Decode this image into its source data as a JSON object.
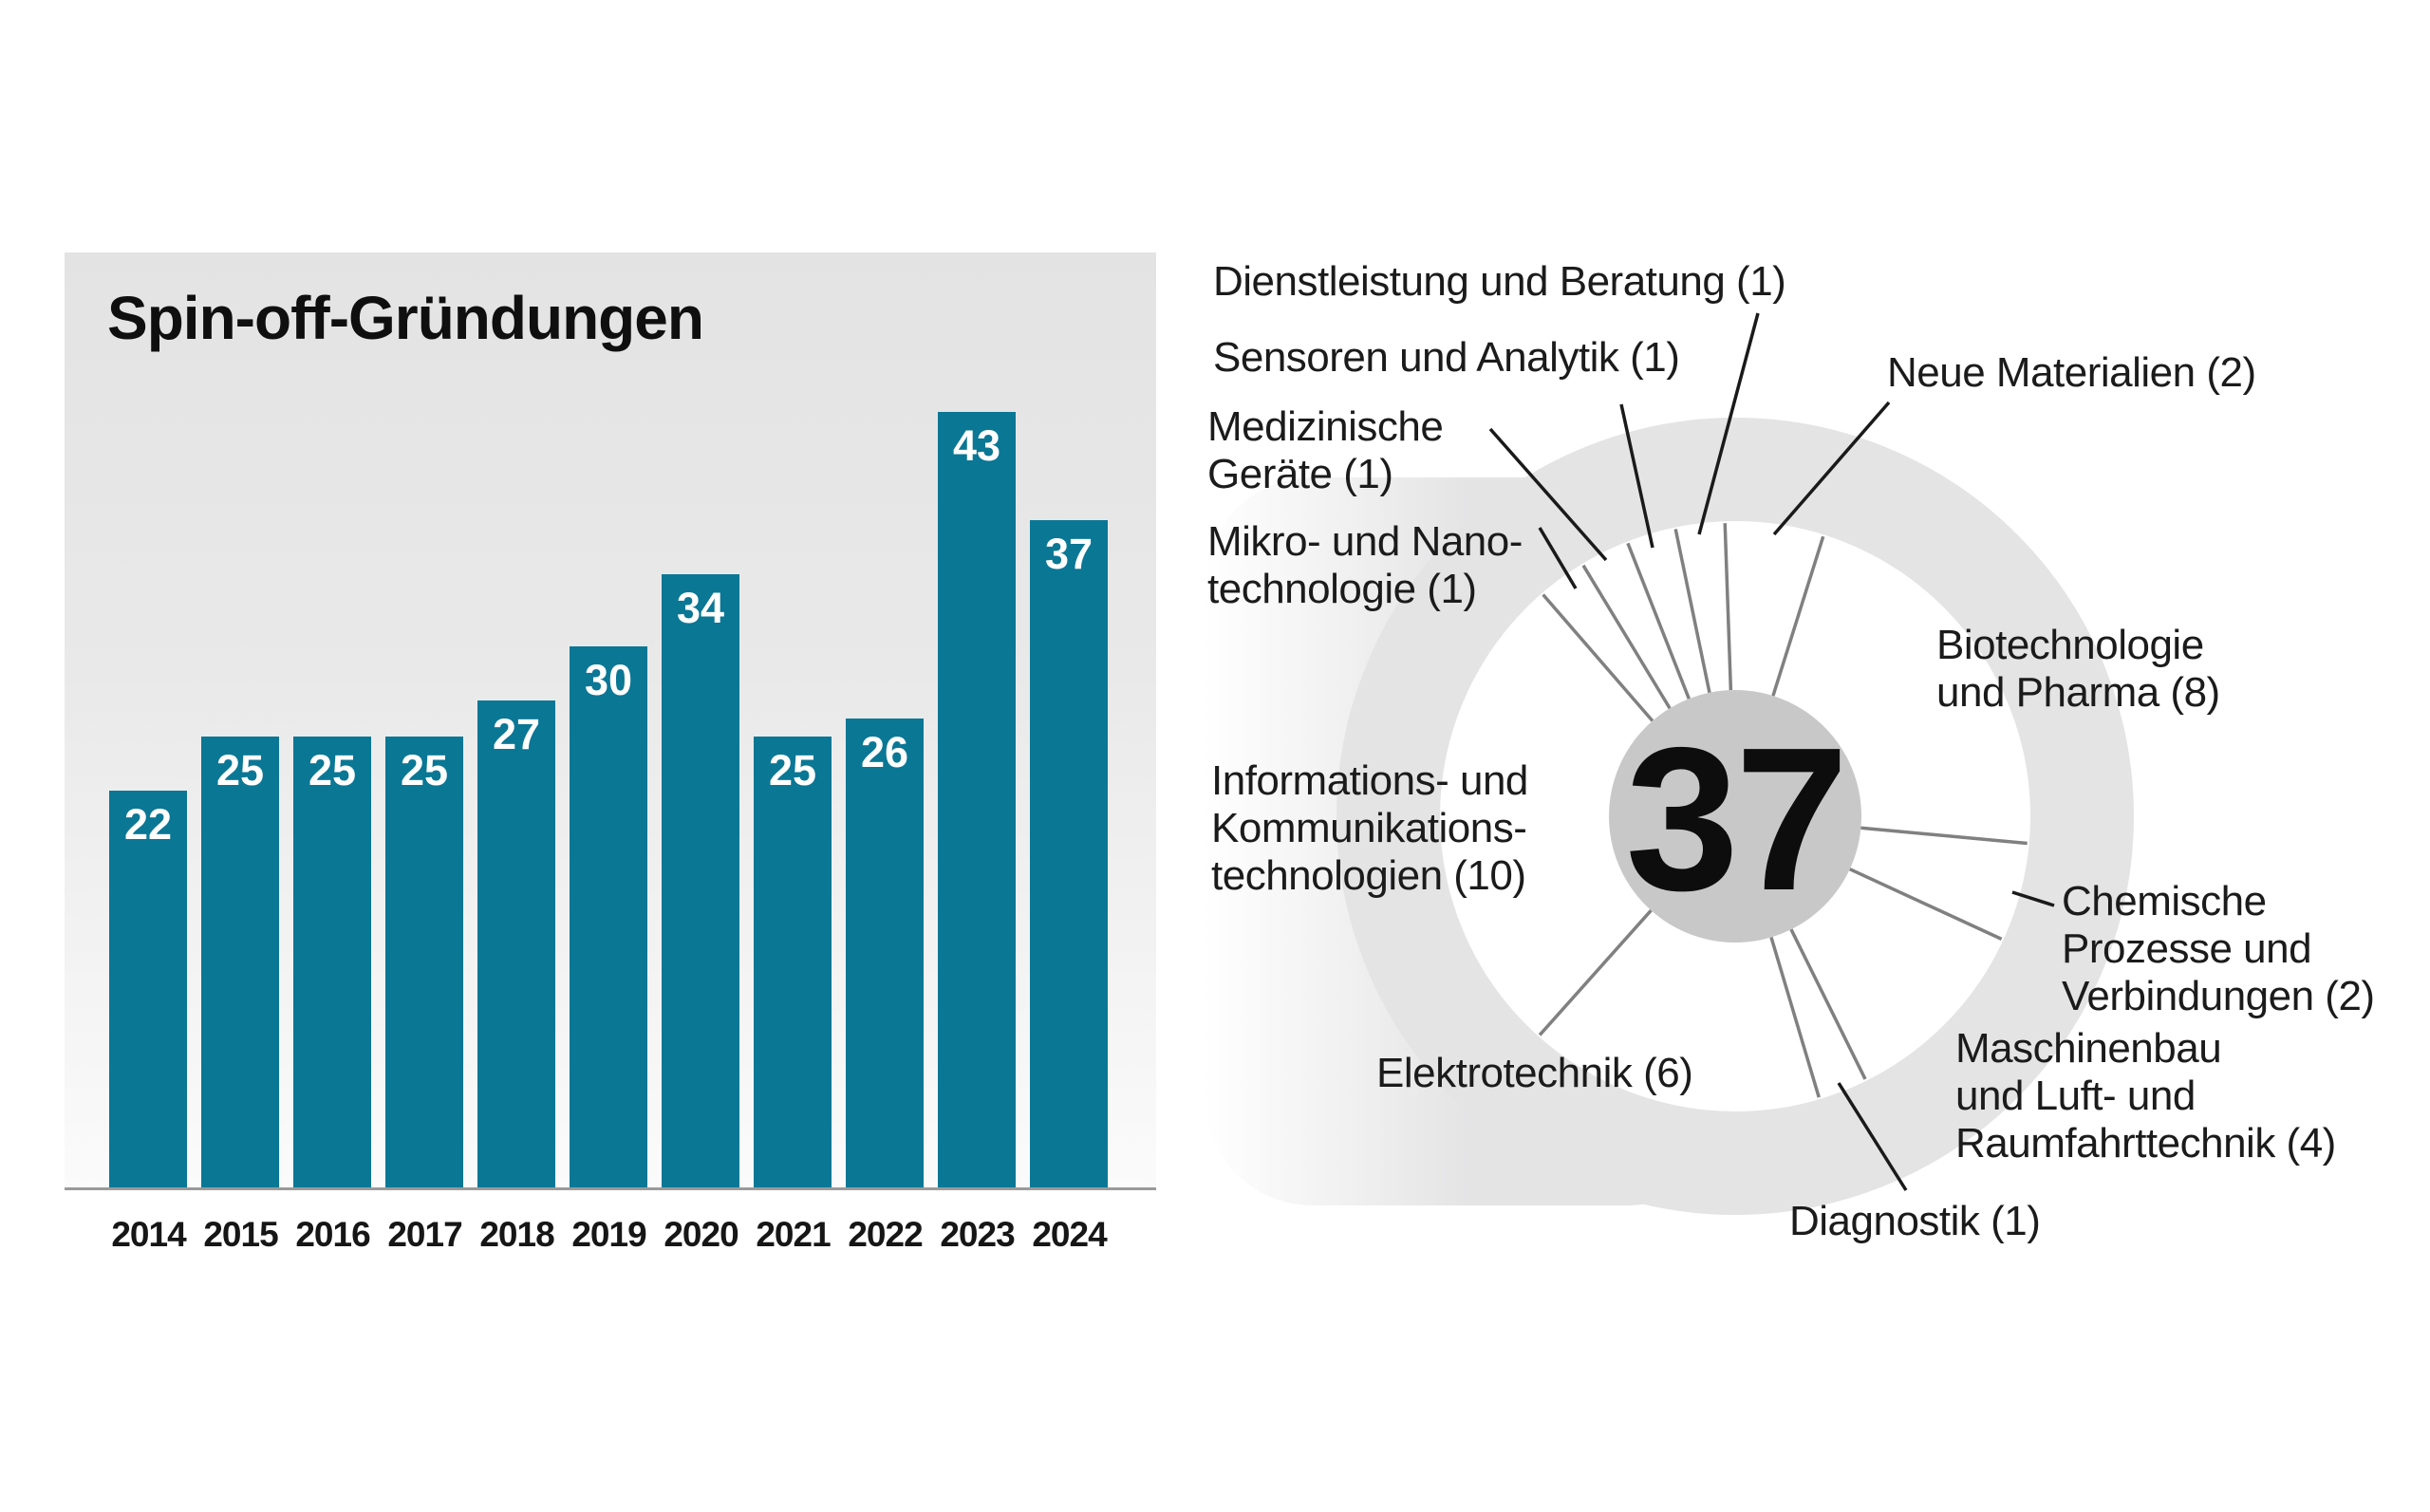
{
  "chart_data": [
    {
      "type": "bar",
      "title": "Spin-off-Gründungen",
      "categories": [
        "2014",
        "2015",
        "2016",
        "2017",
        "2018",
        "2019",
        "2020",
        "2021",
        "2022",
        "2023",
        "2024"
      ],
      "values": [
        22,
        25,
        25,
        25,
        27,
        30,
        34,
        25,
        26,
        43,
        37
      ],
      "xlabel": "",
      "ylabel": "",
      "grid": "off",
      "legend": "none",
      "bar_color": "#0a7795",
      "value_label_color": "#ffffff",
      "panel_background": "gradient #e3e3e3 to #fbfbfb"
    },
    {
      "type": "pie",
      "style": "wheel-with-radial-spokes",
      "center_total": "37",
      "start_angle_deg": -2,
      "direction": "clockwise",
      "ring_color": "#e4e4e5",
      "hub_color": "#c8c8c8",
      "spoke_color": "#808080",
      "callout_color": "#1a1a1a",
      "segments": [
        {
          "id": "neue-materialien",
          "label": "Neue Materialien (2)",
          "value": 2
        },
        {
          "id": "biotechnologie",
          "label": "Biotechnologie\nund Pharma (8)",
          "value": 8
        },
        {
          "id": "chemische",
          "label": "Chemische\nProzesse und\nVerbindungen (2)",
          "value": 2
        },
        {
          "id": "maschinenbau",
          "label": "Maschinenbau\nund Luft- und\nRaumfahrttechnik (4)",
          "value": 4
        },
        {
          "id": "diagnostik",
          "label": "Diagnostik (1)",
          "value": 1
        },
        {
          "id": "elektrotechnik",
          "label": "Elektrotechnik (6)",
          "value": 6
        },
        {
          "id": "ikt",
          "label": "Informations- und\nKommunikations-\ntechnologien (10)",
          "value": 10
        },
        {
          "id": "mikro",
          "label": "Mikro- und Nano-\ntechnologie (1)",
          "value": 1
        },
        {
          "id": "medizinische",
          "label": "Medizinische\nGeräte (1)",
          "value": 1
        },
        {
          "id": "sensoren",
          "label": "Sensoren und Analytik (1)",
          "value": 1
        },
        {
          "id": "dienstleistung",
          "label": "Dienstleistung und Beratung (1)",
          "value": 1
        }
      ]
    }
  ]
}
